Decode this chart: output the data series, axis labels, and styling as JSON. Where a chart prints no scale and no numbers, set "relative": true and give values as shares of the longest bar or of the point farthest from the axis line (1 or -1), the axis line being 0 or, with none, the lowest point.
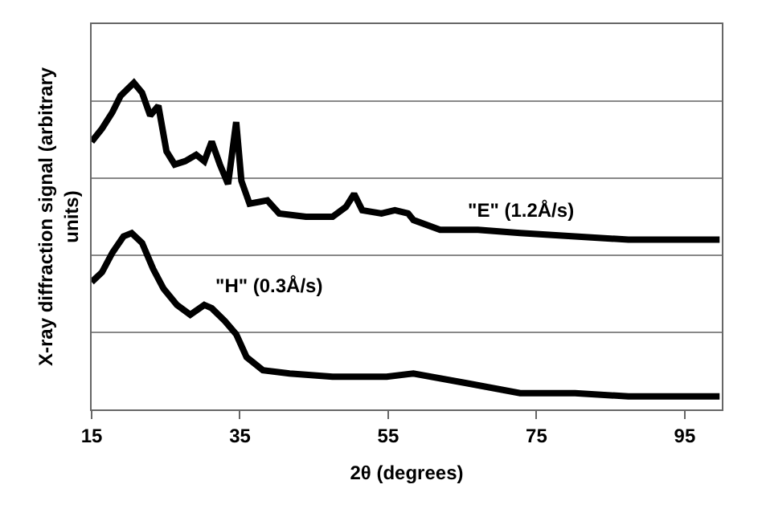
{
  "chart_data": {
    "type": "line",
    "relative": true,
    "xlabel": "2θ (degrees)",
    "ylabel": "X-ray diffraction signal (arbitrary units)",
    "xlim": [
      15,
      100
    ],
    "xticks": [
      15,
      35,
      55,
      75,
      95
    ],
    "grid": "y",
    "tick_labels": "x",
    "legend": false,
    "marker": "none",
    "line_style": "solid",
    "series": [
      {
        "name": "\"E\" (1.2Å/s)",
        "color": "#000000",
        "x": [
          15,
          16.4,
          17.8,
          18.9,
          20.7,
          21.8,
          22.9,
          24.0,
          25.1,
          26.2,
          27.6,
          29.1,
          30.2,
          31.2,
          32.3,
          33.4,
          34.5,
          35.2,
          36.3,
          38.7,
          40.3,
          43.9,
          47.5,
          49.3,
          50.4,
          51.5,
          54.1,
          55.9,
          57.7,
          58.4,
          62,
          67.1,
          72.8,
          80.2,
          87.4,
          94.6,
          99.7
        ],
        "values": [
          0.82,
          0.86,
          0.91,
          0.96,
          1,
          0.97,
          0.9,
          0.93,
          0.79,
          0.75,
          0.76,
          0.78,
          0.76,
          0.82,
          0.75,
          0.69,
          0.88,
          0.7,
          0.63,
          0.64,
          0.6,
          0.59,
          0.59,
          0.62,
          0.66,
          0.61,
          0.6,
          0.61,
          0.6,
          0.58,
          0.55,
          0.55,
          0.54,
          0.53,
          0.52,
          0.52,
          0.52
        ]
      },
      {
        "name": "\"H\" (0.3Å/s)",
        "color": "#000000",
        "x": [
          15,
          16.4,
          17.8,
          19.3,
          20.4,
          21.8,
          23.3,
          24.7,
          26.5,
          28.3,
          30.2,
          31.2,
          33.0,
          34.5,
          35.9,
          38.1,
          41.7,
          47.5,
          54.8,
          58.4,
          65.7,
          72.8,
          80.2,
          87.4,
          94.6,
          99.7
        ],
        "values": [
          0.39,
          0.42,
          0.48,
          0.53,
          0.54,
          0.51,
          0.43,
          0.37,
          0.32,
          0.29,
          0.32,
          0.31,
          0.27,
          0.23,
          0.16,
          0.12,
          0.11,
          0.1,
          0.1,
          0.11,
          0.08,
          0.05,
          0.05,
          0.04,
          0.04,
          0.04
        ]
      }
    ]
  }
}
